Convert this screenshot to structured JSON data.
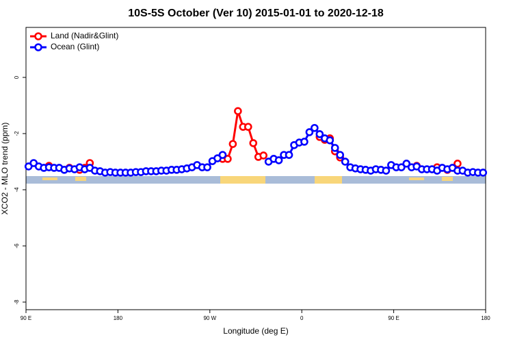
{
  "chart_data": {
    "type": "line",
    "title": "10S-5S October (Ver 10)   2015-01-01 to 2020-12-18",
    "x_label": "Longitude (deg E)",
    "y_label": "XCO2 - MLO trend (ppm)",
    "x": [
      92.5,
      97.5,
      102.5,
      107.5,
      112.5,
      117.5,
      122.5,
      127.5,
      132.5,
      137.5,
      142.5,
      147.5,
      152.5,
      157.5,
      162.5,
      167.5,
      172.5,
      177.5,
      182.5,
      187.5,
      192.5,
      197.5,
      202.5,
      207.5,
      212.5,
      217.5,
      222.5,
      227.5,
      232.5,
      237.5,
      242.5,
      247.5,
      252.5,
      257.5,
      262.5,
      267.5,
      272.5,
      277.5,
      282.5,
      287.5,
      292.5,
      297.5,
      302.5,
      307.5,
      312.5,
      317.5,
      322.5,
      327.5,
      332.5,
      337.5,
      342.5,
      347.5,
      352.5,
      357.5,
      362.5,
      367.5,
      372.5,
      377.5,
      382.5,
      387.5,
      392.5,
      397.5,
      402.5,
      407.5,
      412.5,
      417.5,
      422.5,
      427.5,
      432.5,
      437.5,
      442.5,
      447.5,
      452.5,
      457.5,
      462.5,
      467.5,
      472.5,
      477.5,
      482.5,
      487.5,
      492.5,
      497.5,
      502.5,
      507.5,
      512.5,
      517.5,
      522.5,
      527.5,
      532.5,
      537.5
    ],
    "series": [
      {
        "name": "Land (Nadir&Glint)",
        "color": "#ff0000",
        "values": [
          null,
          null,
          null,
          null,
          -3.15,
          null,
          null,
          null,
          -3.22,
          null,
          -3.29,
          -3.22,
          -3.05,
          null,
          null,
          null,
          null,
          null,
          null,
          null,
          null,
          null,
          null,
          null,
          null,
          null,
          null,
          null,
          null,
          null,
          null,
          null,
          null,
          null,
          null,
          null,
          null,
          null,
          -2.9,
          -2.9,
          -2.37,
          -1.2,
          -1.76,
          -1.76,
          -2.34,
          -2.83,
          -2.78,
          null,
          null,
          null,
          null,
          null,
          null,
          null,
          null,
          null,
          null,
          -2.12,
          -2.22,
          -2.17,
          -2.63,
          -2.85,
          null,
          null,
          null,
          null,
          null,
          null,
          null,
          null,
          null,
          null,
          null,
          null,
          null,
          null,
          -3.15,
          null,
          null,
          null,
          -3.2,
          null,
          -3.29,
          null,
          -3.07,
          null,
          null,
          null,
          null,
          null
        ]
      },
      {
        "name": "Ocean (Glint)",
        "color": "#0000ff",
        "values": [
          -3.17,
          -3.05,
          -3.17,
          -3.22,
          -3.2,
          -3.22,
          -3.22,
          -3.29,
          -3.24,
          -3.27,
          -3.2,
          -3.27,
          -3.22,
          -3.32,
          -3.34,
          -3.39,
          -3.37,
          -3.39,
          -3.39,
          -3.39,
          -3.39,
          -3.37,
          -3.37,
          -3.34,
          -3.34,
          -3.34,
          -3.32,
          -3.32,
          -3.29,
          -3.29,
          -3.27,
          -3.24,
          -3.2,
          -3.12,
          -3.2,
          -3.2,
          -2.98,
          -2.88,
          -2.76,
          null,
          null,
          null,
          null,
          null,
          null,
          null,
          null,
          -3.0,
          -2.9,
          -2.95,
          -2.76,
          -2.76,
          -2.41,
          -2.32,
          -2.29,
          -1.95,
          -1.8,
          -2.02,
          -2.17,
          -2.24,
          -2.51,
          -2.76,
          -3.0,
          -3.2,
          -3.24,
          -3.27,
          -3.29,
          -3.32,
          -3.27,
          -3.29,
          -3.32,
          -3.12,
          -3.2,
          -3.2,
          -3.07,
          -3.2,
          -3.17,
          -3.27,
          -3.27,
          -3.27,
          -3.32,
          -3.22,
          -3.27,
          -3.22,
          -3.32,
          -3.32,
          -3.39,
          -3.37,
          -3.39,
          -3.39
        ]
      }
    ],
    "xlim": [
      90,
      540
    ],
    "xticks": [
      {
        "value": 90,
        "label": "90 E"
      },
      180,
      {
        "value": 270,
        "label": "90 W"
      },
      {
        "value": 360,
        "label": "0"
      },
      {
        "value": 450,
        "label": "90 E"
      },
      {
        "value": 540,
        "label": "180"
      }
    ],
    "ylim": [
      -8.27,
      1.78
    ],
    "yticks": [
      0,
      -2,
      -4,
      -6,
      -8
    ],
    "legend": "topleft"
  }
}
